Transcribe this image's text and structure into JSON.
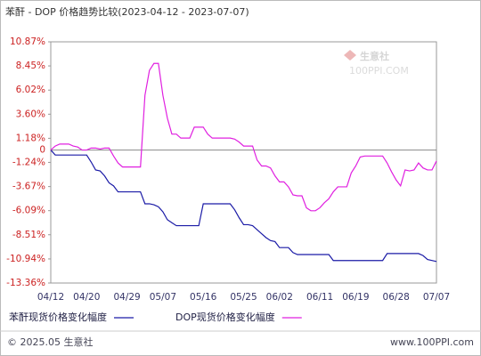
{
  "chart_data": {
    "type": "line",
    "title": "苯酐 - DOP 价格趋势比较(2023-04-12 - 2023-07-07)",
    "categories": [
      "04/12",
      null,
      null,
      null,
      null,
      null,
      null,
      null,
      "04/20",
      null,
      null,
      null,
      null,
      null,
      null,
      null,
      null,
      "04/29",
      null,
      null,
      null,
      null,
      null,
      null,
      null,
      "05/07",
      null,
      null,
      null,
      null,
      null,
      null,
      null,
      null,
      "05/16",
      null,
      null,
      null,
      null,
      null,
      null,
      null,
      null,
      "05/25",
      null,
      null,
      null,
      null,
      null,
      null,
      null,
      "06/02",
      null,
      null,
      null,
      null,
      null,
      null,
      null,
      null,
      "06/11",
      null,
      null,
      null,
      null,
      null,
      null,
      null,
      "06/19",
      null,
      null,
      null,
      null,
      null,
      null,
      null,
      null,
      "06/28",
      null,
      null,
      null,
      null,
      null,
      null,
      null,
      null,
      "07/07"
    ],
    "series": [
      {
        "name": "苯酐现货价格变化幅度",
        "color": "#1a1aa6",
        "values": [
          0,
          -0.5,
          -0.5,
          -0.5,
          -0.5,
          -0.5,
          -0.5,
          -0.5,
          -0.5,
          -1.2,
          -2.0,
          -2.1,
          -2.6,
          -3.3,
          -3.6,
          -4.2,
          -4.2,
          -4.2,
          -4.2,
          -4.2,
          -4.2,
          -5.4,
          -5.4,
          -5.5,
          -5.7,
          -6.2,
          -7.0,
          -7.3,
          -7.6,
          -7.6,
          -7.6,
          -7.6,
          -7.6,
          -7.6,
          -5.4,
          -5.4,
          -5.4,
          -5.4,
          -5.4,
          -5.4,
          -5.4,
          -6.0,
          -6.8,
          -7.5,
          -7.5,
          -7.6,
          -8.0,
          -8.4,
          -8.8,
          -9.1,
          -9.2,
          -9.8,
          -9.8,
          -9.8,
          -10.3,
          -10.5,
          -10.5,
          -10.5,
          -10.5,
          -10.5,
          -10.5,
          -10.5,
          -10.5,
          -11.1,
          -11.1,
          -11.1,
          -11.1,
          -11.1,
          -11.1,
          -11.1,
          -11.1,
          -11.1,
          -11.1,
          -11.1,
          -11.1,
          -10.4,
          -10.4,
          -10.4,
          -10.4,
          -10.4,
          -10.4,
          -10.4,
          -10.4,
          -10.6,
          -11.0,
          -11.1,
          -11.2
        ]
      },
      {
        "name": "DOP现货价格变化幅度",
        "color": "#e020e0",
        "values": [
          0,
          0.4,
          0.6,
          0.6,
          0.6,
          0.4,
          0.3,
          0.0,
          0.0,
          0.2,
          0.2,
          0.1,
          0.2,
          0.2,
          -0.6,
          -1.3,
          -1.7,
          -1.7,
          -1.7,
          -1.7,
          -1.7,
          5.5,
          8.0,
          8.7,
          8.7,
          5.5,
          3.2,
          1.6,
          1.6,
          1.2,
          1.2,
          1.2,
          2.3,
          2.3,
          2.3,
          1.6,
          1.2,
          1.2,
          1.2,
          1.2,
          1.2,
          1.1,
          0.8,
          0.4,
          0.4,
          0.4,
          -1.0,
          -1.6,
          -1.6,
          -1.8,
          -2.6,
          -3.2,
          -3.2,
          -3.7,
          -4.5,
          -4.6,
          -4.6,
          -5.8,
          -6.1,
          -6.1,
          -5.8,
          -5.3,
          -4.9,
          -4.2,
          -3.7,
          -3.7,
          -3.7,
          -2.3,
          -1.6,
          -0.7,
          -0.6,
          -0.6,
          -0.6,
          -0.6,
          -0.6,
          -1.3,
          -2.2,
          -3.0,
          -3.6,
          -2.0,
          -2.1,
          -2.0,
          -1.3,
          -1.8,
          -2.0,
          -2.0,
          -1.1
        ]
      }
    ],
    "ylim": [
      -13.36,
      10.87
    ],
    "yticks": [
      {
        "value": 10.87,
        "label": "10.87%"
      },
      {
        "value": 8.45,
        "label": "8.45%"
      },
      {
        "value": 6.02,
        "label": "6.02%"
      },
      {
        "value": 3.6,
        "label": "3.60%"
      },
      {
        "value": 1.18,
        "label": "1.18%"
      },
      0,
      {
        "value": -1.24,
        "label": "-1.24%"
      },
      {
        "value": -3.67,
        "label": "-3.67%"
      },
      {
        "value": -6.09,
        "label": "-6.09%"
      },
      {
        "value": -8.51,
        "label": "-8.51%"
      },
      {
        "value": -10.94,
        "label": "-10.94%"
      },
      {
        "value": -13.36,
        "label": "-13.36%"
      }
    ]
  },
  "watermark": {
    "name": "生意社",
    "site": "100PPI.COM"
  },
  "footer": {
    "copyright": "© 2025.05 生意社",
    "site": "www.100PPI.com"
  }
}
